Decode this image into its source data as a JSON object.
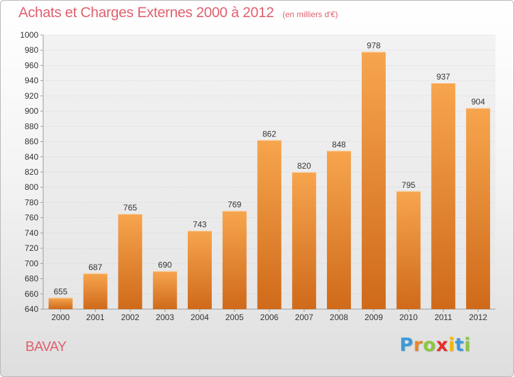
{
  "title": "Achats et Charges Externes 2000 à 2012",
  "unit": "(en milliers d'€)",
  "commune": "BAVAY",
  "logo": {
    "letters": [
      "P",
      "r",
      "o",
      "x",
      "i",
      "t",
      "i"
    ],
    "colors": [
      "#3a9ad9",
      "#e8862a",
      "#8cc63f",
      "#e8302a",
      "#f2b705",
      "#3a9ad9",
      "#8cc63f"
    ]
  },
  "colors": {
    "bar_light": "#f7a54e",
    "bar_dark": "#cf6a1a",
    "title": "#e0606e"
  },
  "chart_data": {
    "type": "bar",
    "title": "Achats et Charges Externes 2000 à 2012",
    "subtitle": "(en milliers d'€)",
    "xlabel": "",
    "ylabel": "",
    "categories": [
      "2000",
      "2001",
      "2002",
      "2003",
      "2004",
      "2005",
      "2006",
      "2007",
      "2008",
      "2009",
      "2010",
      "2011",
      "2012"
    ],
    "values": [
      655,
      687,
      765,
      690,
      743,
      769,
      862,
      820,
      848,
      978,
      795,
      937,
      904
    ],
    "ylim": [
      640,
      1000
    ],
    "ytick_step": 20,
    "grid": true
  }
}
